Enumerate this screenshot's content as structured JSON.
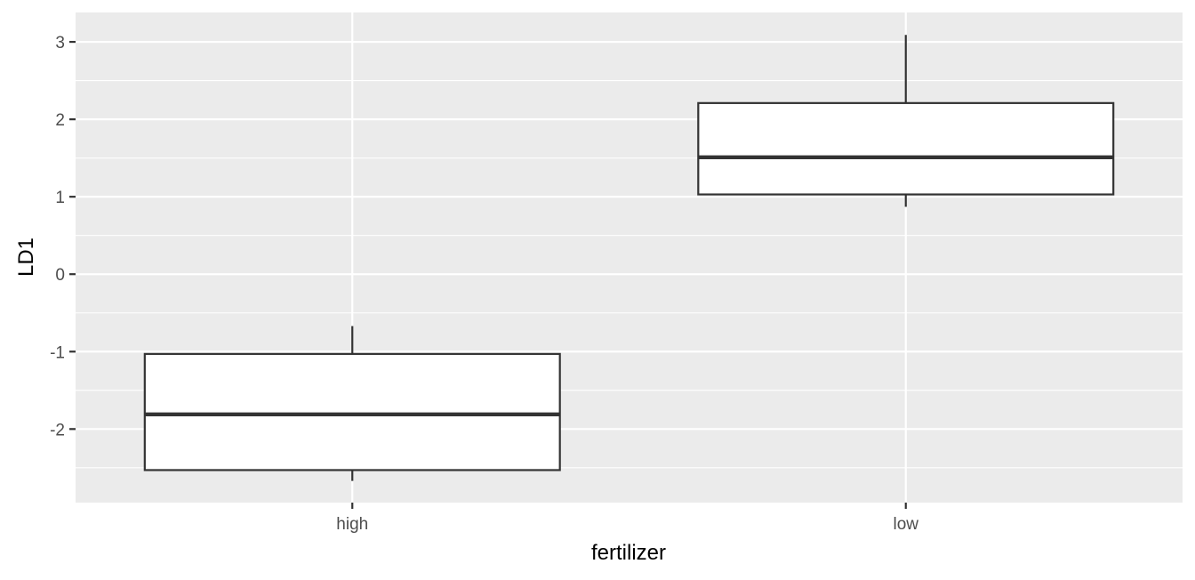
{
  "chart_data": {
    "type": "boxplot",
    "xlabel": "fertilizer",
    "ylabel": "LD1",
    "categories": [
      "high",
      "low"
    ],
    "boxes": [
      {
        "category": "high",
        "whisker_low": -2.67,
        "q1": -2.53,
        "median": -1.81,
        "q3": -1.03,
        "whisker_high": -0.67
      },
      {
        "category": "low",
        "whisker_low": 0.87,
        "q1": 1.03,
        "median": 1.51,
        "q3": 2.21,
        "whisker_high": 3.09
      }
    ],
    "ylim": [
      -2.95,
      3.38
    ],
    "yticks": [
      -2,
      -1,
      0,
      1,
      2,
      3
    ],
    "ytick_labels": [
      "-2",
      "-1",
      "0",
      "1",
      "2",
      "3"
    ],
    "grid": true,
    "colors": {
      "panel_background": "#ebebeb",
      "grid_major": "#ffffff",
      "box_fill": "#ffffff",
      "box_line": "#333333",
      "tick_text": "#4d4d4d"
    }
  }
}
